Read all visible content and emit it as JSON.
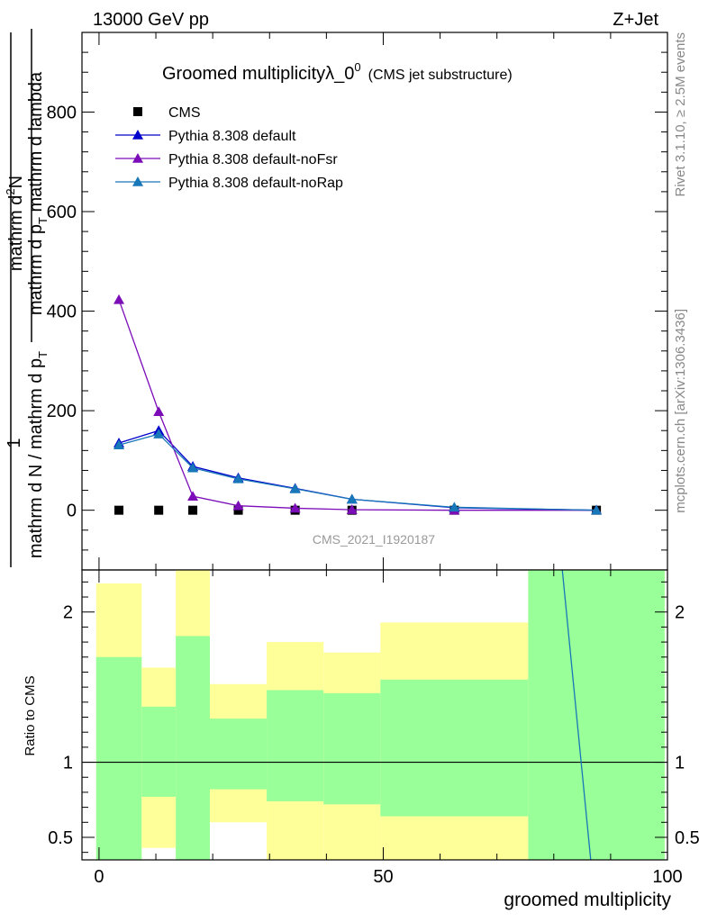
{
  "header": {
    "energy_label": "13000 GeV pp",
    "process_label": "Z+Jet"
  },
  "side_labels": {
    "rivet": "Rivet 3.1.10, ≥ 2.5M events",
    "mcplots": "mcplots.cern.ch [arXiv:1306.3436]"
  },
  "chart_data": {
    "type": "line",
    "title": "Groomed multiplicityλ_0",
    "title_superscript": "0",
    "title_suffix": "(CMS jet substructure)",
    "analysis_id": "CMS_2021_I1920187",
    "ylabel_main": [
      "mathrm d N / mathrm d p",
      "T",
      "mathrm d lambda"
    ],
    "ylabel_main_lines": [
      "mathrm d²N",
      "1",
      "mathrm d N / mathrm d p",
      "T",
      "mathrm d p",
      "T",
      "mathrm d lambda"
    ],
    "ylabel_ratio": "Ratio to CMS",
    "xlabel": "groomed multiplicity",
    "xlim": [
      -3,
      100
    ],
    "ylim_main": [
      -120,
      960
    ],
    "ylim_ratio": [
      0.35,
      2.28
    ],
    "x_ticks": [
      0,
      50,
      100
    ],
    "y_ticks_main": [
      0,
      200,
      400,
      600,
      800
    ],
    "y_ticks_ratio": [
      0.5,
      1,
      2
    ],
    "legend": [
      {
        "name": "CMS",
        "marker": "square",
        "color": "#000000"
      },
      {
        "name": "Pythia 8.308 default",
        "marker": "triangle",
        "color": "#0000cc"
      },
      {
        "name": "Pythia 8.308 default-noFsr",
        "marker": "triangle",
        "color": "#7b0cb8"
      },
      {
        "name": "Pythia 8.308 default-noRap",
        "marker": "triangle",
        "color": "#1777b8"
      }
    ],
    "legend_placement": "top-left",
    "x": [
      3.5,
      10.5,
      16.5,
      24.5,
      34.5,
      44.5,
      62.5,
      87.5
    ],
    "series": [
      {
        "name": "CMS",
        "values": [
          0,
          0,
          0,
          0,
          0,
          0,
          0,
          0
        ]
      },
      {
        "name": "Pythia 8.308 default",
        "values": [
          135,
          160,
          88,
          65,
          44,
          22,
          5,
          0
        ]
      },
      {
        "name": "Pythia 8.308 default-noFsr",
        "values": [
          423,
          198,
          28,
          9,
          4,
          1,
          0,
          0
        ]
      },
      {
        "name": "Pythia 8.308 default-noRap",
        "values": [
          131,
          153,
          85,
          63,
          43,
          22,
          6,
          0
        ]
      }
    ],
    "ratio_bands": [
      {
        "x_lo": -0.5,
        "x_hi": 7.5,
        "green": [
          0.35,
          1.7
        ],
        "yellow": [
          0.35,
          2.19
        ]
      },
      {
        "x_lo": 7.5,
        "x_hi": 13.5,
        "green": [
          0.77,
          1.37
        ],
        "yellow": [
          0.43,
          1.63
        ]
      },
      {
        "x_lo": 13.5,
        "x_hi": 19.5,
        "green": [
          0.35,
          1.84
        ],
        "yellow": [
          0.35,
          2.28
        ]
      },
      {
        "x_lo": 19.5,
        "x_hi": 29.5,
        "green": [
          0.82,
          1.29
        ],
        "yellow": [
          0.6,
          1.52
        ]
      },
      {
        "x_lo": 29.5,
        "x_hi": 39.5,
        "green": [
          0.74,
          1.48
        ],
        "yellow": [
          0.35,
          1.8
        ]
      },
      {
        "x_lo": 39.5,
        "x_hi": 49.5,
        "green": [
          0.72,
          1.46
        ],
        "yellow": [
          0.35,
          1.73
        ]
      },
      {
        "x_lo": 49.5,
        "x_hi": 75.5,
        "green": [
          0.64,
          1.55
        ],
        "yellow": [
          0.35,
          1.93
        ]
      },
      {
        "x_lo": 75.5,
        "x_hi": 99.5,
        "green": [
          0.35,
          2.28
        ],
        "yellow": [
          0.35,
          2.28
        ]
      }
    ],
    "ratio_line": {
      "x": [
        81.5,
        86.5
      ],
      "y": [
        2.28,
        0.35
      ],
      "color": "#1777b8"
    },
    "grid": false
  }
}
